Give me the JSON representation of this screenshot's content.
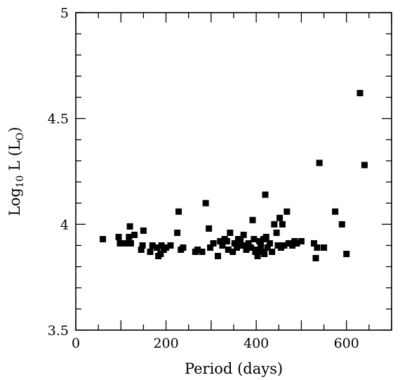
{
  "chart_data": {
    "type": "scatter",
    "xlabel": "Period (days)",
    "ylabel": "Log",
    "ylabel_sub": "10",
    "ylabel_tail": " L (L",
    "ylabel_unit_sub": "O",
    "ylabel_close": ")",
    "xlim": [
      0,
      700
    ],
    "ylim": [
      3.5,
      5
    ],
    "xticks": [
      {
        "value": 0,
        "label": "0"
      },
      {
        "value": 200,
        "label": "200"
      },
      {
        "value": 400,
        "label": "400"
      },
      {
        "value": 600,
        "label": "600"
      }
    ],
    "yticks": [
      {
        "value": 3.5,
        "label": "3.5"
      },
      {
        "value": 4,
        "label": "4"
      },
      {
        "value": 4.5,
        "label": "4.5"
      },
      {
        "value": 5,
        "label": "5"
      }
    ],
    "grid": false,
    "marker": "filled-square",
    "color": "#000000",
    "points": [
      [
        60,
        3.93
      ],
      [
        95,
        3.94
      ],
      [
        98,
        3.91
      ],
      [
        110,
        3.91
      ],
      [
        118,
        3.94
      ],
      [
        120,
        3.99
      ],
      [
        122,
        3.91
      ],
      [
        130,
        3.95
      ],
      [
        145,
        3.88
      ],
      [
        148,
        3.9
      ],
      [
        150,
        3.97
      ],
      [
        165,
        3.87
      ],
      [
        170,
        3.9
      ],
      [
        180,
        3.89
      ],
      [
        183,
        3.85
      ],
      [
        188,
        3.86
      ],
      [
        190,
        3.9
      ],
      [
        195,
        3.88
      ],
      [
        200,
        3.89
      ],
      [
        210,
        3.9
      ],
      [
        225,
        3.96
      ],
      [
        228,
        4.06
      ],
      [
        233,
        3.88
      ],
      [
        238,
        3.89
      ],
      [
        265,
        3.87
      ],
      [
        270,
        3.88
      ],
      [
        280,
        3.87
      ],
      [
        288,
        4.1
      ],
      [
        295,
        3.98
      ],
      [
        298,
        3.89
      ],
      [
        305,
        3.91
      ],
      [
        315,
        3.85
      ],
      [
        320,
        3.92
      ],
      [
        325,
        3.9
      ],
      [
        330,
        3.93
      ],
      [
        335,
        3.92
      ],
      [
        338,
        3.88
      ],
      [
        342,
        3.96
      ],
      [
        348,
        3.87
      ],
      [
        352,
        3.91
      ],
      [
        357,
        3.89
      ],
      [
        360,
        3.93
      ],
      [
        365,
        3.92
      ],
      [
        370,
        3.9
      ],
      [
        372,
        3.95
      ],
      [
        378,
        3.88
      ],
      [
        383,
        3.91
      ],
      [
        388,
        3.89
      ],
      [
        392,
        4.02
      ],
      [
        395,
        3.93
      ],
      [
        398,
        3.87
      ],
      [
        400,
        3.88
      ],
      [
        403,
        3.85
      ],
      [
        407,
        3.92
      ],
      [
        410,
        3.9
      ],
      [
        413,
        3.87
      ],
      [
        416,
        3.93
      ],
      [
        418,
        3.86
      ],
      [
        420,
        4.14
      ],
      [
        422,
        3.94
      ],
      [
        425,
        3.89
      ],
      [
        430,
        3.91
      ],
      [
        435,
        3.87
      ],
      [
        440,
        4.0
      ],
      [
        445,
        3.96
      ],
      [
        448,
        3.9
      ],
      [
        452,
        4.03
      ],
      [
        455,
        3.89
      ],
      [
        458,
        4.0
      ],
      [
        462,
        3.9
      ],
      [
        468,
        4.06
      ],
      [
        472,
        3.91
      ],
      [
        480,
        3.9
      ],
      [
        485,
        3.92
      ],
      [
        490,
        3.91
      ],
      [
        500,
        3.92
      ],
      [
        528,
        3.91
      ],
      [
        532,
        3.84
      ],
      [
        535,
        3.89
      ],
      [
        540,
        4.29
      ],
      [
        550,
        3.89
      ],
      [
        575,
        4.06
      ],
      [
        590,
        4.0
      ],
      [
        600,
        3.86
      ],
      [
        630,
        4.62
      ],
      [
        640,
        4.28
      ]
    ]
  }
}
